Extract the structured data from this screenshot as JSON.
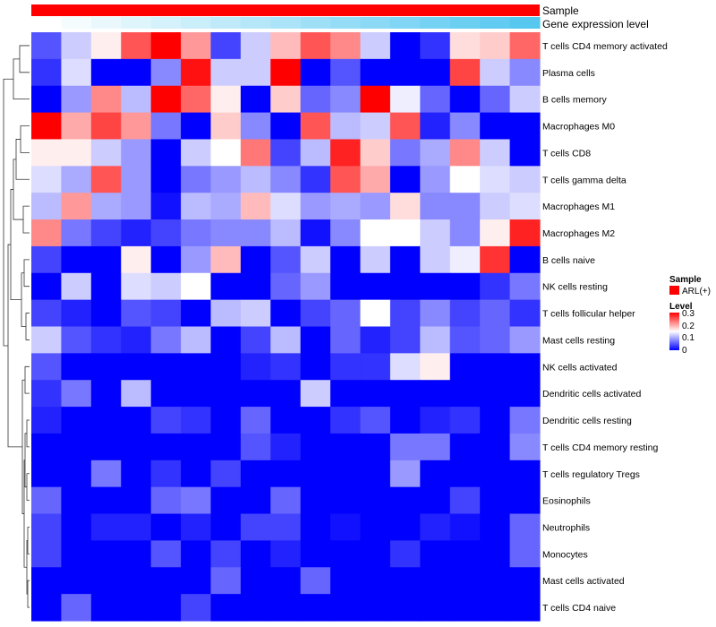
{
  "chart_data": {
    "type": "heatmap",
    "title": "",
    "rows": [
      "T cells CD4 memory activated",
      "Plasma cells",
      "B cells memory",
      "Macrophages M0",
      "T cells CD8",
      "T cells gamma delta",
      "Macrophages M1",
      "Macrophages M2",
      "B cells naive",
      "NK cells resting",
      "T cells follicular helper",
      "Mast cells resting",
      "NK cells activated",
      "Dendritic cells activated",
      "Dendritic cells resting",
      "T cells CD4 memory resting",
      "T cells regulatory  Tregs",
      "Eosinophils",
      "Neutrophils",
      "Monocytes",
      "Mast cells activated",
      "T cells CD4 naive"
    ],
    "n_columns": 17,
    "values": [
      [
        0.05,
        0.12,
        0.16,
        0.25,
        0.3,
        0.21,
        0.04,
        0.12,
        0.19,
        0.25,
        0.22,
        0.12,
        0.0,
        0.03,
        0.17,
        0.18,
        0.24
      ],
      [
        0.03,
        0.13,
        0.0,
        0.0,
        0.08,
        0.29,
        0.12,
        0.12,
        0.3,
        0.0,
        0.05,
        0.0,
        0.0,
        0.0,
        0.26,
        0.12,
        0.08
      ],
      [
        0.0,
        0.09,
        0.22,
        0.11,
        0.3,
        0.24,
        0.16,
        0.0,
        0.18,
        0.06,
        0.08,
        0.3,
        0.14,
        0.06,
        0.0,
        0.06,
        0.12
      ],
      [
        0.3,
        0.2,
        0.26,
        0.21,
        0.07,
        0.0,
        0.18,
        0.08,
        0.0,
        0.25,
        0.11,
        0.12,
        0.25,
        0.02,
        0.08,
        0.0,
        0.0
      ],
      [
        0.16,
        0.16,
        0.12,
        0.09,
        0.0,
        0.12,
        0.15,
        0.23,
        0.04,
        0.11,
        0.28,
        0.18,
        0.07,
        0.1,
        0.22,
        0.12,
        0.0
      ],
      [
        0.13,
        0.1,
        0.25,
        0.09,
        0.0,
        0.07,
        0.09,
        0.11,
        0.08,
        0.03,
        0.25,
        0.2,
        0.0,
        0.09,
        0.15,
        0.13,
        0.12
      ],
      [
        0.11,
        0.21,
        0.1,
        0.09,
        0.01,
        0.11,
        0.1,
        0.19,
        0.13,
        0.09,
        0.1,
        0.09,
        0.17,
        0.08,
        0.08,
        0.12,
        0.13
      ],
      [
        0.22,
        0.07,
        0.04,
        0.02,
        0.04,
        0.07,
        0.08,
        0.08,
        0.11,
        0.01,
        0.08,
        0.15,
        0.15,
        0.12,
        0.08,
        0.16,
        0.28
      ],
      [
        0.04,
        0.0,
        0.0,
        0.16,
        0.0,
        0.09,
        0.19,
        0.0,
        0.05,
        0.12,
        0.0,
        0.12,
        0.0,
        0.12,
        0.14,
        0.27,
        0.0
      ],
      [
        0.0,
        0.12,
        0.0,
        0.13,
        0.12,
        0.15,
        0.0,
        0.0,
        0.06,
        0.09,
        0.0,
        0.0,
        0.0,
        0.0,
        0.0,
        0.03,
        0.07
      ],
      [
        0.04,
        0.02,
        0.0,
        0.05,
        0.04,
        0.0,
        0.11,
        0.12,
        0.0,
        0.04,
        0.06,
        0.15,
        0.04,
        0.08,
        0.04,
        0.06,
        0.03
      ],
      [
        0.12,
        0.05,
        0.03,
        0.02,
        0.07,
        0.11,
        0.0,
        0.04,
        0.11,
        0.0,
        0.06,
        0.02,
        0.04,
        0.11,
        0.05,
        0.06,
        0.09
      ],
      [
        0.05,
        0.0,
        0.0,
        0.0,
        0.0,
        0.0,
        0.0,
        0.02,
        0.03,
        0.0,
        0.03,
        0.03,
        0.13,
        0.16,
        0.0,
        0.0,
        0.0
      ],
      [
        0.03,
        0.07,
        0.0,
        0.11,
        0.0,
        0.0,
        0.0,
        0.0,
        0.0,
        0.12,
        0.0,
        0.0,
        0.0,
        0.0,
        0.0,
        0.0,
        0.0
      ],
      [
        0.02,
        0.0,
        0.0,
        0.0,
        0.04,
        0.03,
        0.0,
        0.06,
        0.0,
        0.0,
        0.03,
        0.05,
        0.0,
        0.02,
        0.03,
        0.0,
        0.07
      ],
      [
        0.0,
        0.0,
        0.0,
        0.0,
        0.0,
        0.0,
        0.0,
        0.05,
        0.02,
        0.0,
        0.0,
        0.0,
        0.07,
        0.07,
        0.0,
        0.0,
        0.08
      ],
      [
        0.0,
        0.0,
        0.07,
        0.0,
        0.03,
        0.0,
        0.04,
        0.0,
        0.0,
        0.0,
        0.0,
        0.0,
        0.09,
        0.0,
        0.0,
        0.0,
        0.0
      ],
      [
        0.06,
        0.0,
        0.0,
        0.0,
        0.06,
        0.07,
        0.0,
        0.0,
        0.06,
        0.0,
        0.0,
        0.0,
        0.0,
        0.0,
        0.04,
        0.0,
        0.0
      ],
      [
        0.04,
        0.0,
        0.02,
        0.02,
        0.0,
        0.02,
        0.0,
        0.04,
        0.04,
        0.0,
        0.01,
        0.0,
        0.0,
        0.02,
        0.01,
        0.0,
        0.06
      ],
      [
        0.04,
        0.0,
        0.0,
        0.0,
        0.05,
        0.0,
        0.04,
        0.0,
        0.02,
        0.0,
        0.0,
        0.0,
        0.03,
        0.0,
        0.0,
        0.0,
        0.06
      ],
      [
        0.0,
        0.0,
        0.0,
        0.0,
        0.0,
        0.0,
        0.06,
        0.0,
        0.0,
        0.06,
        0.0,
        0.0,
        0.0,
        0.0,
        0.0,
        0.0,
        0.0
      ],
      [
        0.0,
        0.06,
        0.0,
        0.0,
        0.0,
        0.04,
        0.0,
        0.0,
        0.0,
        0.0,
        0.0,
        0.0,
        0.0,
        0.0,
        0.0,
        0.0,
        0.0
      ]
    ],
    "color_scale": {
      "min": 0,
      "mid": 0.15,
      "max": 0.3,
      "low": "#0000ff",
      "middle": "#ffffff",
      "high": "#ff0000"
    },
    "row_dendrogram": true,
    "annotations": [
      {
        "name": "Sample",
        "colors": [
          "#ff0000"
        ]
      },
      {
        "name": "Gene expression level",
        "gradient": [
          "#ffffff",
          "#56c8f0"
        ]
      }
    ],
    "legend": {
      "sample_title": "Sample",
      "sample_entries": [
        {
          "label": "ARL(+)",
          "color": "#ff0000"
        }
      ],
      "level_title": "Level",
      "level_ticks": [
        "0.3",
        "0.2",
        "0.1",
        "0"
      ],
      "placement": "right"
    }
  }
}
